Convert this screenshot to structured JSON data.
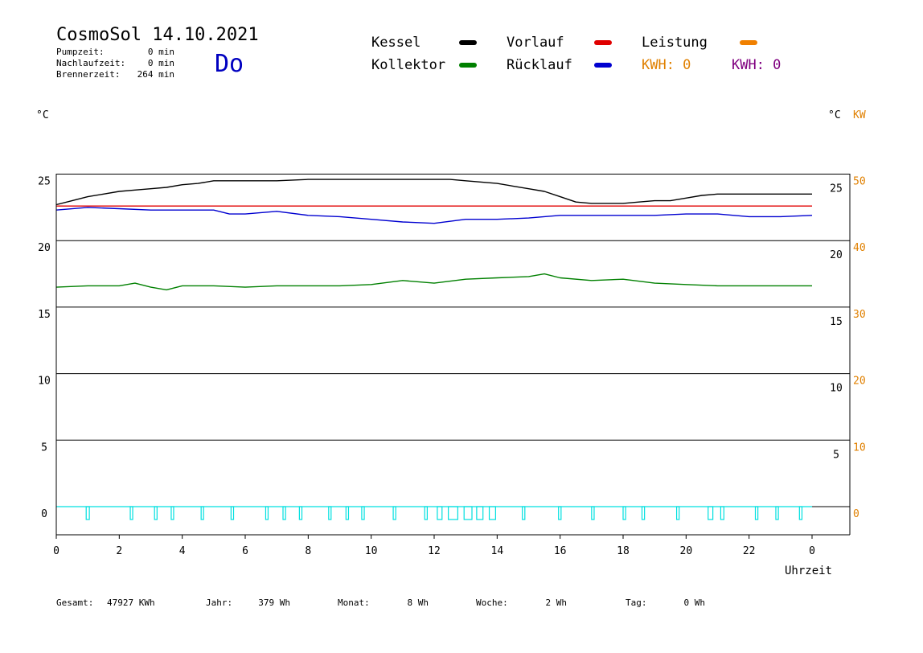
{
  "header": {
    "title": "CosmoSol 14.10.2021",
    "day": "Do",
    "stats": [
      {
        "label": "Pumpzeit:",
        "value": "0 min"
      },
      {
        "label": "Nachlaufzeit:",
        "value": "0 min"
      },
      {
        "label": "Brennerzeit:",
        "value": "264 min"
      }
    ]
  },
  "legend": {
    "items": [
      {
        "label": "Kessel",
        "color": "#000000"
      },
      {
        "label": "Vorlauf",
        "color": "#e00000"
      },
      {
        "label": "Leistung",
        "color": "#f08000"
      },
      {
        "label": "Kollektor",
        "color": "#008000"
      },
      {
        "label": "Rücklauf",
        "color": "#0000d0"
      }
    ],
    "kwh": [
      {
        "text": "KWH: 0",
        "color": "#e08000"
      },
      {
        "text": "KWH: 0",
        "color": "#800080"
      }
    ]
  },
  "axes": {
    "left_unit": "°C",
    "right_unit": "°C",
    "right_unit2": "KW",
    "xlabel": "Uhrzeit"
  },
  "footer": {
    "items": [
      {
        "label": "Gesamt:",
        "value": "47927 KWh"
      },
      {
        "label": "Jahr:",
        "value": "379 Wh"
      },
      {
        "label": "Monat:",
        "value": "8 Wh"
      },
      {
        "label": "Woche:",
        "value": "2 Wh"
      },
      {
        "label": "Tag:",
        "value": "0 Wh"
      }
    ]
  },
  "chart_data": {
    "type": "line",
    "xlim": [
      0,
      24
    ],
    "ylim": [
      -2,
      25
    ],
    "grid": true,
    "x_ticks": [
      "0",
      "2",
      "4",
      "6",
      "8",
      "10",
      "12",
      "14",
      "16",
      "18",
      "20",
      "22",
      "0"
    ],
    "y_left_ticks": [
      0,
      5,
      10,
      15,
      20,
      25
    ],
    "y_right_ticks": [
      5,
      10,
      15,
      20,
      25
    ],
    "y_right2_ticks": [
      {
        "label": "0",
        "at": 0
      },
      {
        "label": "10",
        "at": 5
      },
      {
        "label": "20",
        "at": 10
      },
      {
        "label": "30",
        "at": 15
      },
      {
        "label": "40",
        "at": 20
      },
      {
        "label": "50",
        "at": 25
      }
    ],
    "series": [
      {
        "name": "Kessel",
        "color": "#000000",
        "x": [
          0,
          0.5,
          1,
          1.5,
          2,
          2.5,
          3,
          3.5,
          4,
          4.5,
          5,
          6,
          7,
          8,
          9,
          10,
          11,
          12,
          12.5,
          13,
          13.5,
          14,
          14.5,
          15,
          15.5,
          16,
          16.5,
          17,
          17.5,
          18,
          18.5,
          19,
          19.5,
          20,
          20.5,
          21,
          22,
          23,
          24
        ],
        "values": [
          22.7,
          23.0,
          23.3,
          23.5,
          23.7,
          23.8,
          23.9,
          24.0,
          24.2,
          24.3,
          24.5,
          24.5,
          24.5,
          24.6,
          24.6,
          24.6,
          24.6,
          24.6,
          24.6,
          24.5,
          24.4,
          24.3,
          24.1,
          23.9,
          23.7,
          23.3,
          22.9,
          22.8,
          22.8,
          22.8,
          22.9,
          23.0,
          23.0,
          23.2,
          23.4,
          23.5,
          23.5,
          23.5,
          23.5
        ]
      },
      {
        "name": "Vorlauf",
        "color": "#e00000",
        "x": [
          0,
          24
        ],
        "values": [
          22.6,
          22.6
        ]
      },
      {
        "name": "Rücklauf",
        "color": "#0000d0",
        "x": [
          0,
          1,
          2,
          3,
          4,
          5,
          5.5,
          6,
          7,
          8,
          9,
          10,
          11,
          12,
          13,
          14,
          15,
          16,
          17,
          18,
          19,
          20,
          21,
          22,
          23,
          24
        ],
        "values": [
          22.3,
          22.5,
          22.4,
          22.3,
          22.3,
          22.3,
          22.0,
          22.0,
          22.2,
          21.9,
          21.8,
          21.6,
          21.4,
          21.3,
          21.6,
          21.6,
          21.7,
          21.9,
          21.9,
          21.9,
          21.9,
          22.0,
          22.0,
          21.8,
          21.8,
          21.9
        ]
      },
      {
        "name": "Kollektor",
        "color": "#008000",
        "x": [
          0,
          1,
          2,
          2.5,
          3,
          3.5,
          4,
          5,
          6,
          7,
          8,
          9,
          10,
          11,
          12,
          13,
          14,
          15,
          15.5,
          16,
          17,
          18,
          19,
          20,
          21,
          22,
          23,
          24
        ],
        "values": [
          16.5,
          16.6,
          16.6,
          16.8,
          16.5,
          16.3,
          16.6,
          16.6,
          16.5,
          16.6,
          16.6,
          16.6,
          16.7,
          17.0,
          16.8,
          17.1,
          17.2,
          17.3,
          17.5,
          17.2,
          17.0,
          17.1,
          16.8,
          16.7,
          16.6,
          16.6,
          16.6,
          16.6
        ]
      }
    ],
    "pump_pulses": [
      {
        "start": 0.95,
        "end": 1.05
      },
      {
        "start": 2.35,
        "end": 2.42
      },
      {
        "start": 3.12,
        "end": 3.2
      },
      {
        "start": 3.65,
        "end": 3.72
      },
      {
        "start": 4.6,
        "end": 4.67
      },
      {
        "start": 5.55,
        "end": 5.63
      },
      {
        "start": 6.65,
        "end": 6.72
      },
      {
        "start": 7.2,
        "end": 7.28
      },
      {
        "start": 7.72,
        "end": 7.8
      },
      {
        "start": 8.65,
        "end": 8.72
      },
      {
        "start": 9.2,
        "end": 9.28
      },
      {
        "start": 9.7,
        "end": 9.78
      },
      {
        "start": 10.7,
        "end": 10.78
      },
      {
        "start": 11.7,
        "end": 11.78
      },
      {
        "start": 12.1,
        "end": 12.25
      },
      {
        "start": 12.45,
        "end": 12.75
      },
      {
        "start": 12.95,
        "end": 13.2
      },
      {
        "start": 13.35,
        "end": 13.55
      },
      {
        "start": 13.75,
        "end": 13.95
      },
      {
        "start": 14.8,
        "end": 14.88
      },
      {
        "start": 15.95,
        "end": 16.03
      },
      {
        "start": 17.0,
        "end": 17.08
      },
      {
        "start": 18.0,
        "end": 18.08
      },
      {
        "start": 18.6,
        "end": 18.68
      },
      {
        "start": 19.7,
        "end": 19.78
      },
      {
        "start": 20.7,
        "end": 20.85
      },
      {
        "start": 21.1,
        "end": 21.2
      },
      {
        "start": 22.2,
        "end": 22.28
      },
      {
        "start": 22.85,
        "end": 22.93
      },
      {
        "start": 23.6,
        "end": 23.68
      }
    ],
    "pump_color": "#00e0e0"
  }
}
